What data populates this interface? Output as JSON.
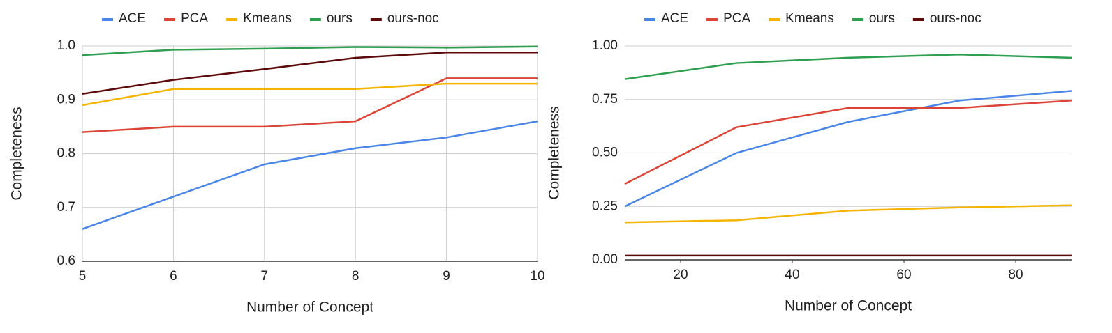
{
  "chart_data": [
    {
      "type": "line",
      "x_label": "Number of Concept",
      "y_label": "Completeness",
      "x": [
        5,
        6,
        7,
        8,
        9,
        10
      ],
      "xlim": [
        5,
        10
      ],
      "xticks": [
        5,
        6,
        7,
        8,
        9,
        10
      ],
      "ylim": [
        0.6,
        1
      ],
      "yticks": [
        0.6,
        0.7,
        0.8,
        0.9,
        {
          "value": 1,
          "label": "1.0"
        }
      ],
      "grid": "both",
      "legend": "top",
      "series": [
        {
          "name": "ACE",
          "color": "#4a86e8",
          "values": [
            0.66,
            0.72,
            0.78,
            0.81,
            0.83,
            0.86
          ]
        },
        {
          "name": "PCA",
          "color": "#db4437",
          "values": [
            0.84,
            0.85,
            0.85,
            0.86,
            0.94,
            0.94
          ]
        },
        {
          "name": "Kmeans",
          "color": "#f4b400",
          "values": [
            0.89,
            0.92,
            0.92,
            0.92,
            0.93,
            0.93
          ]
        },
        {
          "name": "ours",
          "color": "#2e9e4f",
          "values": [
            0.983,
            0.993,
            0.995,
            0.998,
            0.997,
            0.999
          ]
        },
        {
          "name": "ours-noc",
          "color": "#5c0a0a",
          "values": [
            0.911,
            0.937,
            0.957,
            0.978,
            0.988,
            0.988
          ]
        }
      ]
    },
    {
      "type": "line",
      "x_label": "Number of Concept",
      "y_label": "Completeness",
      "x": [
        10,
        30,
        50,
        70,
        90
      ],
      "xlim": [
        10,
        90
      ],
      "xticks": [
        20,
        40,
        60,
        80
      ],
      "ylim": [
        0,
        1
      ],
      "yticks": [
        {
          "value": 0,
          "label": "0.00"
        },
        {
          "value": 0.25,
          "label": "0.25"
        },
        {
          "value": 0.5,
          "label": "0.50"
        },
        {
          "value": 0.75,
          "label": "0.75"
        },
        {
          "value": 1,
          "label": "1.00"
        }
      ],
      "grid": "y",
      "legend": "top",
      "series": [
        {
          "name": "ACE",
          "color": "#4a86e8",
          "values": [
            0.25,
            0.5,
            0.645,
            0.745,
            0.79
          ]
        },
        {
          "name": "PCA",
          "color": "#db4437",
          "values": [
            0.355,
            0.62,
            0.71,
            0.71,
            0.745
          ]
        },
        {
          "name": "Kmeans",
          "color": "#f4b400",
          "values": [
            0.175,
            0.185,
            0.23,
            0.245,
            0.255
          ]
        },
        {
          "name": "ours",
          "color": "#2e9e4f",
          "values": [
            0.845,
            0.92,
            0.945,
            0.96,
            0.945
          ]
        },
        {
          "name": "ours-noc",
          "color": "#5c0a0a",
          "values": [
            0.02,
            0.02,
            0.02,
            0.02,
            0.02
          ]
        }
      ]
    }
  ]
}
